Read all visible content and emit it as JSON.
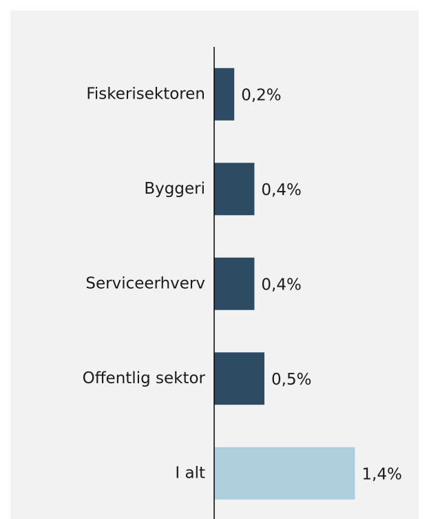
{
  "chart_data": {
    "type": "barh",
    "categories": [
      "Fiskerisektoren",
      "Byggeri",
      "Serviceerhverv",
      "Offentlig sektor",
      "I alt"
    ],
    "values": [
      0.2,
      0.4,
      0.4,
      0.5,
      1.4
    ],
    "value_labels": [
      "0,2%",
      "0,4%",
      "0,4%",
      "0,5%",
      "1,4%"
    ],
    "colors": [
      "#2d4b62",
      "#2d4b62",
      "#2d4b62",
      "#2d4b62",
      "#aecfdb"
    ]
  }
}
